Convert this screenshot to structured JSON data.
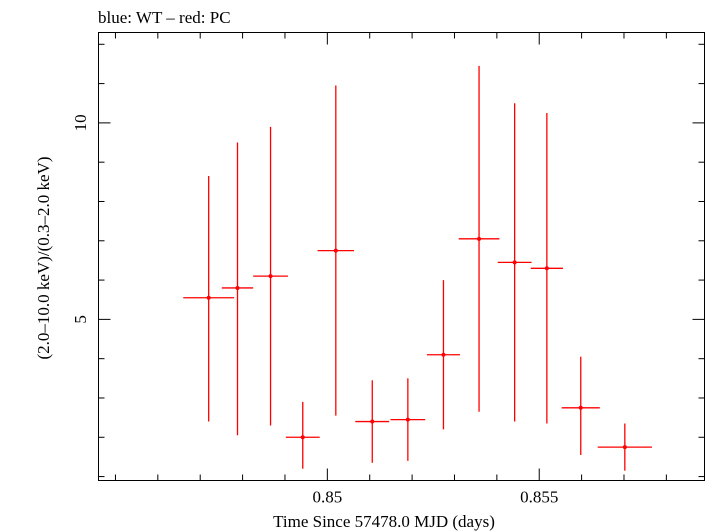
{
  "chart_data": {
    "type": "scatter",
    "title": "blue: WT – red: PC",
    "xlabel": "Time Since 57478.0 MJD (days)",
    "ylabel": "(2.0–10.0 keV)/(0.3–2.0 keV)",
    "xlim": [
      0.8446,
      0.8589
    ],
    "ylim": [
      0.9,
      12.3
    ],
    "x_ticks": [
      0.85,
      0.855
    ],
    "x_tick_labels": [
      "0.85",
      "0.855"
    ],
    "y_ticks": [
      5,
      10
    ],
    "y_tick_labels": [
      "5",
      "10"
    ],
    "series": [
      {
        "name": "PC",
        "color": "#ff0000",
        "points": [
          {
            "x": 0.8472,
            "xerr": 0.0006,
            "y": 5.55,
            "ylo": 2.4,
            "yhi": 8.65
          },
          {
            "x": 0.84788,
            "xerr": 0.00037,
            "y": 5.8,
            "ylo": 2.05,
            "yhi": 9.5
          },
          {
            "x": 0.84866,
            "xerr": 0.00041,
            "y": 6.1,
            "ylo": 2.3,
            "yhi": 9.9
          },
          {
            "x": 0.84942,
            "xerr": 0.0004,
            "y": 2.0,
            "ylo": 1.2,
            "yhi": 2.9
          },
          {
            "x": 0.8502,
            "xerr": 0.00043,
            "y": 6.75,
            "ylo": 2.55,
            "yhi": 10.95
          },
          {
            "x": 0.85106,
            "xerr": 0.0004,
            "y": 2.4,
            "ylo": 1.35,
            "yhi": 3.45
          },
          {
            "x": 0.8519,
            "xerr": 0.00041,
            "y": 2.45,
            "ylo": 1.4,
            "yhi": 3.5
          },
          {
            "x": 0.85274,
            "xerr": 0.00039,
            "y": 4.1,
            "ylo": 2.2,
            "yhi": 6.0
          },
          {
            "x": 0.85358,
            "xerr": 0.00048,
            "y": 7.05,
            "ylo": 2.65,
            "yhi": 11.45
          },
          {
            "x": 0.85442,
            "xerr": 0.0004,
            "y": 6.45,
            "ylo": 2.4,
            "yhi": 10.5
          },
          {
            "x": 0.85518,
            "xerr": 0.00038,
            "y": 6.3,
            "ylo": 2.35,
            "yhi": 10.25
          },
          {
            "x": 0.85598,
            "xerr": 0.00045,
            "y": 2.75,
            "ylo": 1.55,
            "yhi": 4.05
          },
          {
            "x": 0.85702,
            "xerr": 0.00064,
            "y": 1.75,
            "ylo": 1.15,
            "yhi": 2.35
          }
        ]
      }
    ]
  }
}
